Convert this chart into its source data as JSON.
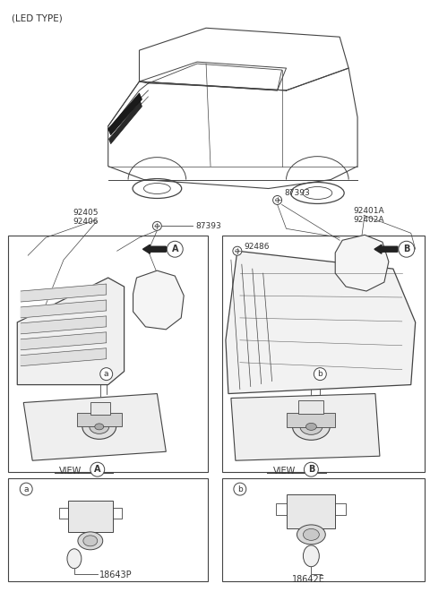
{
  "title": "(LED TYPE)",
  "bg_color": "#ffffff",
  "lc": "#444444",
  "tc": "#333333",
  "part_left1": "92405",
  "part_left2": "92406",
  "part_bolt1": "87393",
  "part_bolt2": "87393",
  "part_right1": "92401A",
  "part_right2": "92402A",
  "part_center": "92486",
  "part_bottom_left": "18643P",
  "part_bottom_right": "18642E",
  "view_left": "A",
  "view_right": "B"
}
